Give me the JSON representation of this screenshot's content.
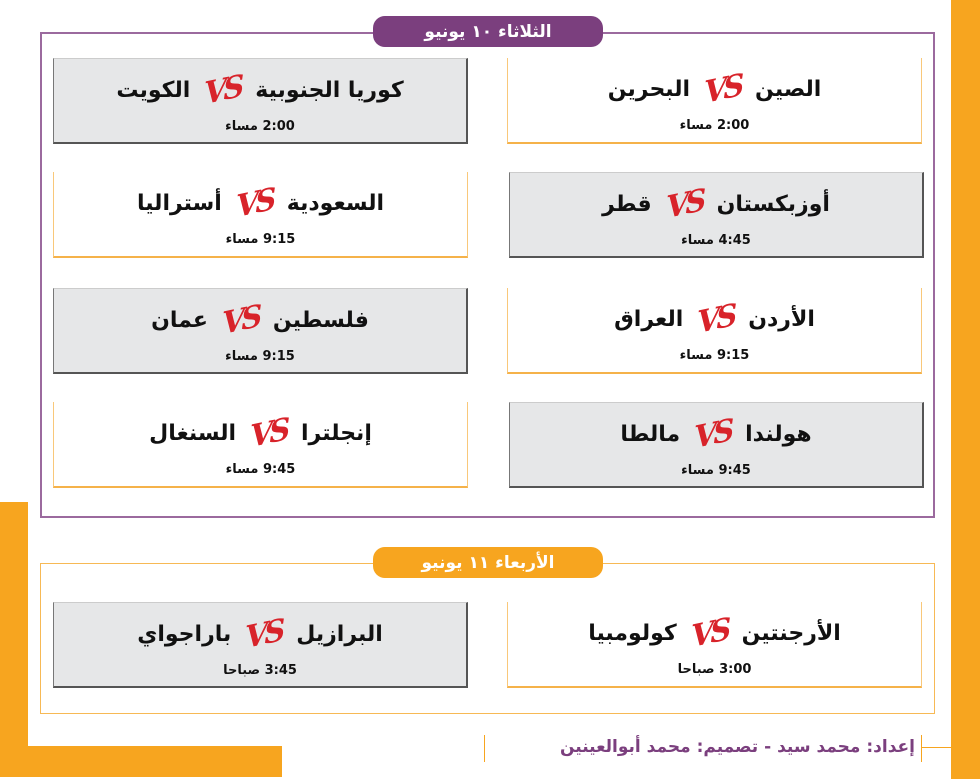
{
  "colors": {
    "purple": "#7b3f7e",
    "orange": "#f7a51f",
    "vs_red": "#d8232a"
  },
  "vs_logo": "VS",
  "sections": [
    {
      "date": "الثلاثاء ١٠ يونيو",
      "matches": [
        {
          "home": "الصين",
          "away": "البحرين",
          "time": "2:00 مساء"
        },
        {
          "home": "كوريا الجنوبية",
          "away": "الكويت",
          "time": "2:00 مساء"
        },
        {
          "home": "أوزبكستان",
          "away": "قطر",
          "time": "4:45 مساء"
        },
        {
          "home": "السعودية",
          "away": "أستراليا",
          "time": "9:15 مساء"
        },
        {
          "home": "الأردن",
          "away": "العراق",
          "time": "9:15 مساء"
        },
        {
          "home": "فلسطين",
          "away": "عمان",
          "time": "9:15 مساء"
        },
        {
          "home": "هولندا",
          "away": "مالطا",
          "time": "9:45 مساء"
        },
        {
          "home": "إنجلترا",
          "away": "السنغال",
          "time": "9:45 مساء"
        }
      ]
    },
    {
      "date": "الأربعاء ١١ يونيو",
      "matches": [
        {
          "home": "الأرجنتين",
          "away": "كولومبيا",
          "time": "3:00 صباحا"
        },
        {
          "home": "البرازيل",
          "away": "باراجواي",
          "time": "3:45 صباحا"
        }
      ]
    }
  ],
  "footer": {
    "credit": "إعداد: محمد سيد  -  تصميم: محمد أبوالعينين"
  }
}
